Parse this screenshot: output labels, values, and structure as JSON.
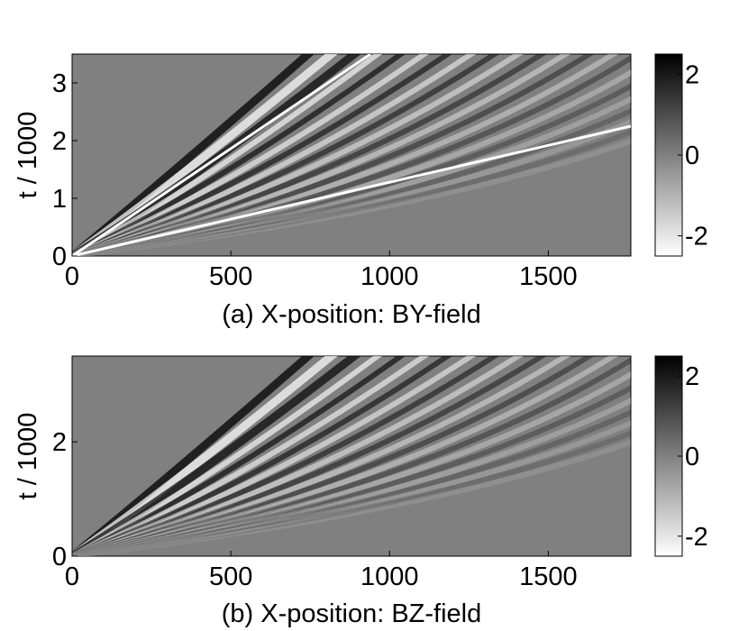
{
  "chart_data": [
    {
      "type": "heatmap",
      "title": "",
      "xlabel": "(a) X-position: BY-field",
      "ylabel": "t / 1000",
      "xlim": [
        0,
        1760
      ],
      "ylim": [
        0,
        3.5
      ],
      "x_ticks": [
        "0",
        "500",
        "1000",
        "1500"
      ],
      "x_tick_values": [
        0,
        500,
        1000,
        1500
      ],
      "y_ticks": [
        "0",
        "1",
        "2",
        "3"
      ],
      "y_tick_values": [
        0,
        1,
        2,
        3
      ],
      "colormap": "gray (black high, white low)",
      "colorbar": {
        "ticks": [
          "2",
          "0",
          "-2"
        ],
        "tick_values": [
          2,
          0,
          -2
        ],
        "range": [
          -2.5,
          2.5
        ]
      },
      "overlay_lines": [
        {
          "from": [
            0,
            0
          ],
          "to": [
            940,
            3.5
          ],
          "color": "#ffffff"
        },
        {
          "from": [
            0,
            0
          ],
          "to": [
            1760,
            2.25
          ],
          "color": "#ffffff"
        }
      ]
    },
    {
      "type": "heatmap",
      "title": "",
      "xlabel": "(b) X-position: BZ-field",
      "ylabel": "t / 1000",
      "xlim": [
        0,
        1760
      ],
      "ylim": [
        0,
        3.5
      ],
      "x_ticks": [
        "0",
        "500",
        "1000",
        "1500"
      ],
      "x_tick_values": [
        0,
        500,
        1000,
        1500
      ],
      "y_ticks": [
        "0",
        "2"
      ],
      "y_tick_values": [
        0,
        2
      ],
      "colormap": "gray (black high, white low)",
      "colorbar": {
        "ticks": [
          "2",
          "0",
          "-2"
        ],
        "tick_values": [
          2,
          0,
          -2
        ],
        "range": [
          -2.5,
          2.5
        ]
      },
      "overlay_lines": []
    }
  ]
}
